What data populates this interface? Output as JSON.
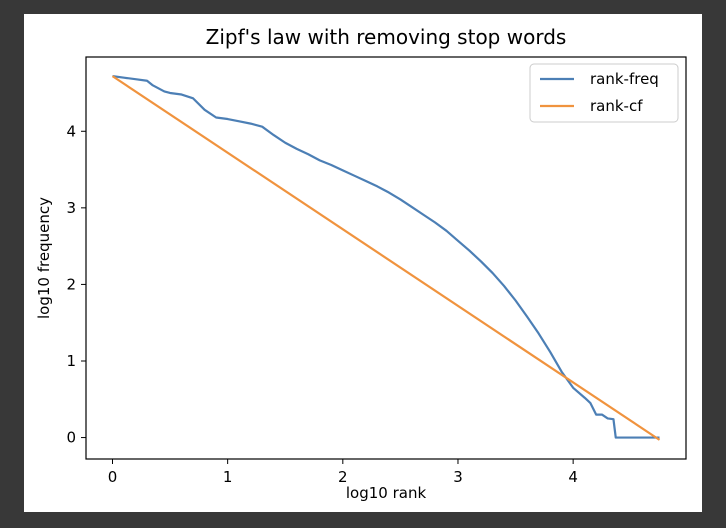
{
  "chart_data": {
    "type": "line",
    "title": "Zipf's law with removing stop words",
    "xlabel": "log10 rank",
    "ylabel": "log10 frequency",
    "xlim": [
      -0.23,
      4.98
    ],
    "ylim": [
      -0.28,
      4.97
    ],
    "xticks": [
      0,
      1,
      2,
      3,
      4
    ],
    "yticks": [
      0,
      1,
      2,
      3,
      4
    ],
    "grid": false,
    "legend_position": "top-right",
    "series": [
      {
        "name": "rank-freq",
        "color": "#4c7fb5",
        "x": [
          0.0,
          0.1,
          0.2,
          0.3,
          0.35,
          0.45,
          0.5,
          0.6,
          0.7,
          0.8,
          0.9,
          1.0,
          1.1,
          1.2,
          1.3,
          1.4,
          1.5,
          1.6,
          1.7,
          1.8,
          1.9,
          2.0,
          2.1,
          2.2,
          2.3,
          2.4,
          2.5,
          2.6,
          2.7,
          2.8,
          2.9,
          3.0,
          3.1,
          3.2,
          3.3,
          3.4,
          3.5,
          3.6,
          3.7,
          3.8,
          3.9,
          4.0,
          4.1,
          4.15,
          4.2,
          4.25,
          4.3,
          4.35,
          4.37,
          4.45,
          4.47,
          4.75
        ],
        "y": [
          4.72,
          4.7,
          4.68,
          4.66,
          4.6,
          4.52,
          4.5,
          4.48,
          4.43,
          4.28,
          4.18,
          4.16,
          4.13,
          4.1,
          4.06,
          3.95,
          3.85,
          3.77,
          3.7,
          3.62,
          3.56,
          3.49,
          3.42,
          3.35,
          3.28,
          3.2,
          3.11,
          3.01,
          2.91,
          2.81,
          2.7,
          2.57,
          2.44,
          2.3,
          2.15,
          1.98,
          1.79,
          1.58,
          1.36,
          1.12,
          0.86,
          0.65,
          0.52,
          0.45,
          0.3,
          0.3,
          0.25,
          0.24,
          0.0,
          0.0,
          0.0,
          0.0
        ]
      },
      {
        "name": "rank-cf",
        "color": "#f0933e",
        "x": [
          0.0,
          4.75
        ],
        "y": [
          4.72,
          -0.03
        ]
      }
    ]
  }
}
